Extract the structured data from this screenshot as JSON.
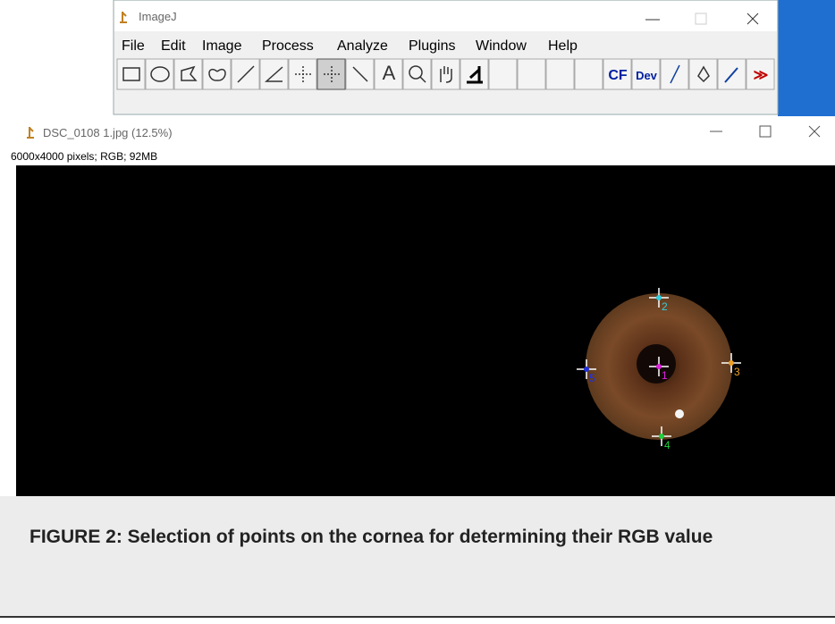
{
  "imagej_window": {
    "title": "ImageJ",
    "menu": [
      "File",
      "Edit",
      "Image",
      "Process",
      "Analyze",
      "Plugins",
      "Window",
      "Help"
    ],
    "toolbar_text": [
      "A",
      "CF",
      "Dev",
      "≫"
    ]
  },
  "image_window": {
    "title": "DSC_0108 1.jpg (12.5%)",
    "info": "6000x4000 pixels; RGB; 92MB",
    "points": [
      {
        "label": "1",
        "color": "#e020e0"
      },
      {
        "label": "2",
        "color": "#30d0e0"
      },
      {
        "label": "3",
        "color": "#f0a020"
      },
      {
        "label": "4",
        "color": "#20d040"
      },
      {
        "label": "5",
        "color": "#2030e0"
      }
    ]
  },
  "caption": "FIGURE 2: Selection of points on the cornea for determining their RGB value"
}
